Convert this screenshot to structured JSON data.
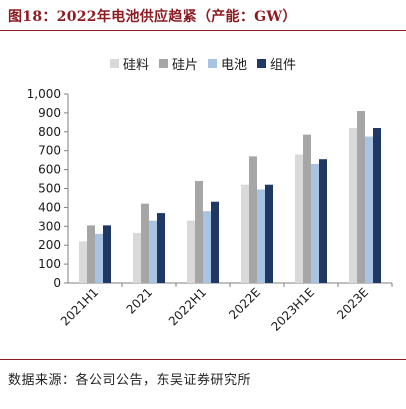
{
  "figure": {
    "title": "图18：2022年电池供应趋紧（产能：GW）",
    "source": "数据来源：各公司公告，东吴证券研究所"
  },
  "colors": {
    "accent": "#8b1d22",
    "series": [
      "#d9d9d9",
      "#a6a6a6",
      "#a9c4e3",
      "#1f3864"
    ]
  },
  "chart_data": {
    "type": "bar",
    "categories": [
      "2021H1",
      "2021",
      "2022H1",
      "2022E",
      "2023H1E",
      "2023E"
    ],
    "series": [
      {
        "name": "硅料",
        "values": [
          220,
          265,
          330,
          520,
          680,
          820
        ]
      },
      {
        "name": "硅片",
        "values": [
          305,
          420,
          540,
          670,
          785,
          910
        ]
      },
      {
        "name": "电池",
        "values": [
          260,
          330,
          380,
          495,
          630,
          775
        ]
      },
      {
        "name": "组件",
        "values": [
          305,
          370,
          430,
          520,
          655,
          820
        ]
      }
    ],
    "ylim": [
      0,
      1000
    ],
    "yticks": [
      0,
      100,
      200,
      300,
      400,
      500,
      600,
      700,
      800,
      900,
      1000
    ],
    "ytick_labels": [
      "0",
      "100",
      "200",
      "300",
      "400",
      "500",
      "600",
      "700",
      "800",
      "900",
      "1,000"
    ],
    "legend_position": "top-center",
    "grid": false
  }
}
